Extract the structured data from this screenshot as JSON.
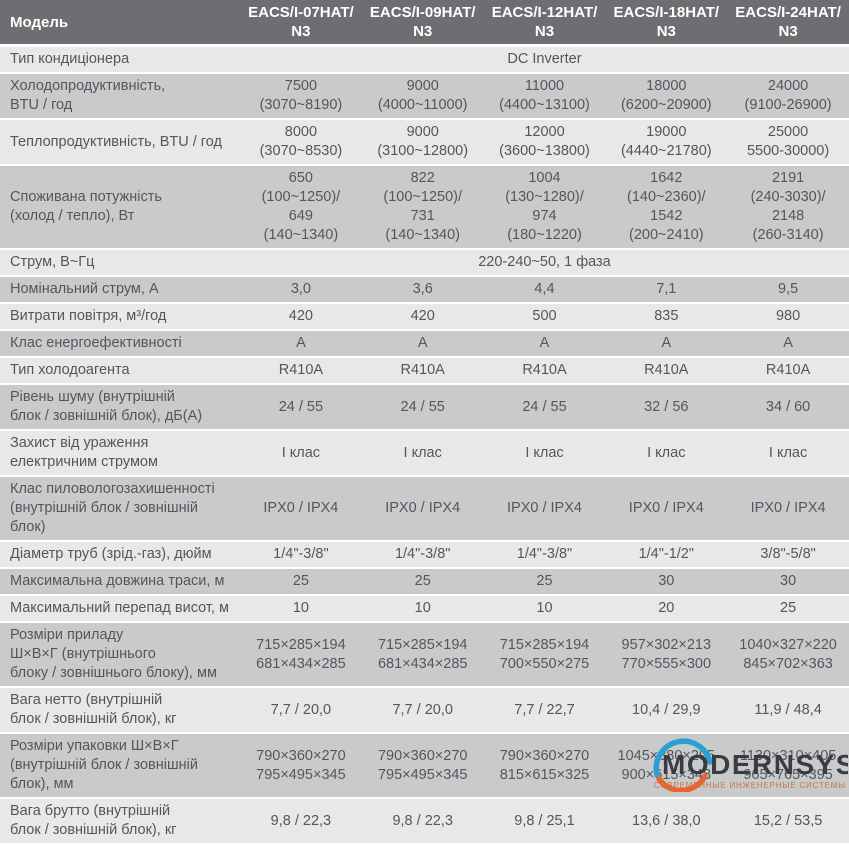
{
  "header": {
    "model_label": "Модель",
    "columns": [
      "EACS/I-07HAT/\nN3",
      "EACS/I-09HAT/\nN3",
      "EACS/I-12HAT/\nN3",
      "EACS/I-18HAT/\nN3",
      "EACS/I-24HAT/\nN3"
    ]
  },
  "table": {
    "rows": [
      {
        "label": "Тип кондиціонера",
        "span": "DC Inverter"
      },
      {
        "label": "Холодопродуктивність,\nBTU / год",
        "values": [
          "7500\n(3070~8190)",
          "9000\n(4000~11000)",
          "11000\n(4400~13100)",
          "18000\n(6200~20900)",
          "24000\n(9100-26900)"
        ]
      },
      {
        "label": "Теплопродуктивність, BTU / год",
        "values": [
          "8000\n(3070~8530)",
          "9000\n(3100~12800)",
          "12000\n(3600~13800)",
          "19000\n(4440~21780)",
          "25000\n5500-30000)"
        ]
      },
      {
        "label": "Споживана потужність\n(холод / тепло), Вт",
        "values": [
          "650\n(100~1250)/\n649\n(140~1340)",
          "822\n(100~1250)/\n731\n(140~1340)",
          "1004\n(130~1280)/\n974\n(180~1220)",
          "1642\n(140~2360)/\n1542\n(200~2410)",
          "2191\n(240-3030)/\n2148\n(260-3140)"
        ]
      },
      {
        "label": "Струм, В~Гц",
        "span": "220-240~50, 1 фаза"
      },
      {
        "label": "Номінальний струм, А",
        "values": [
          "3,0",
          "3,6",
          "4,4",
          "7,1",
          "9,5"
        ]
      },
      {
        "label": "Витрати повітря, м³/год",
        "values": [
          "420",
          "420",
          "500",
          "835",
          "980"
        ]
      },
      {
        "label": "Клас енергоефективності",
        "values": [
          "A",
          "A",
          "A",
          "A",
          "A"
        ]
      },
      {
        "label": "Тип холодоагента",
        "values": [
          "R410A",
          "R410A",
          "R410A",
          "R410A",
          "R410A"
        ]
      },
      {
        "label": "Рівень шуму (внутрішній\nблок / зовнішній блок), дБ(А)",
        "values": [
          "24 / 55",
          "24 / 55",
          "24 / 55",
          "32 / 56",
          "34 / 60"
        ]
      },
      {
        "label": "Захист від ураження\nелектричним струмом",
        "values": [
          "I клас",
          "I клас",
          "I клас",
          "I клас",
          "I клас"
        ]
      },
      {
        "label": "Клас пиловологозахишенності\n(внутрішній блок / зовнішній\nблок)",
        "values": [
          "IPX0 / IPX4",
          "IPX0 / IPX4",
          "IPX0 / IPX4",
          "IPX0 / IPX4",
          "IPX0 / IPX4"
        ]
      },
      {
        "label": "Діаметр труб (зрід.-газ), дюйм",
        "values": [
          "1/4\"-3/8\"",
          "1/4\"-3/8\"",
          "1/4\"-3/8\"",
          "1/4\"-1/2\"",
          "3/8\"-5/8\""
        ]
      },
      {
        "label": "Максимальна довжина траси, м",
        "values": [
          "25",
          "25",
          "25",
          "30",
          "30"
        ]
      },
      {
        "label": "Максимальний перепад висот, м",
        "values": [
          "10",
          "10",
          "10",
          "20",
          "25"
        ]
      },
      {
        "label": "Розміри приладу\nШ×В×Г (внутрішнього\nблоку / зовнішнього блоку), мм",
        "values": [
          "715×285×194\n681×434×285",
          "715×285×194\n681×434×285",
          "715×285×194\n700×550×275",
          "957×302×213\n770×555×300",
          "1040×327×220\n845×702×363"
        ]
      },
      {
        "label": "Вага нетто (внутрішній\nблок / зовнішній блок), кг",
        "values": [
          "7,7 / 20,0",
          "7,7 / 20,0",
          "7,7 / 22,7",
          "10,4 / 29,9",
          "11,9 / 48,4"
        ]
      },
      {
        "label": "Розміри упаковки Ш×В×Г\n(внутрішній блок / зовнішній\nблок), мм",
        "values": [
          "790×360×270\n795×495×345",
          "790×360×270\n795×495×345",
          "790×360×270\n815×615×325",
          "1045×380×295\n900×615×348",
          "1130×310×405\n965×765×395"
        ]
      },
      {
        "label": "Вага брутто (внутрішній\nблок / зовнішній блок), кг",
        "values": [
          "9,8 / 22,3",
          "9,8 / 22,3",
          "9,8 / 25,1",
          "13,6 / 38,0",
          "15,2 / 53,5"
        ]
      }
    ]
  },
  "watermark": {
    "brand": "MODERNSYS",
    "tagline": "СОВРЕМЕННЫЕ ИНЖЕНЕРНЫЕ СИСТЕМЫ"
  },
  "colors": {
    "header_bg": "#6d6e71",
    "header_text": "#ffffff",
    "row_light": "#e7e8e9",
    "row_dark": "#c9cacc",
    "body_text": "#55565a",
    "logo_blue": "#2a9fd4",
    "logo_orange": "#ea652e",
    "logo_text": "#3b3c3f",
    "tagline_text": "#c27848"
  }
}
